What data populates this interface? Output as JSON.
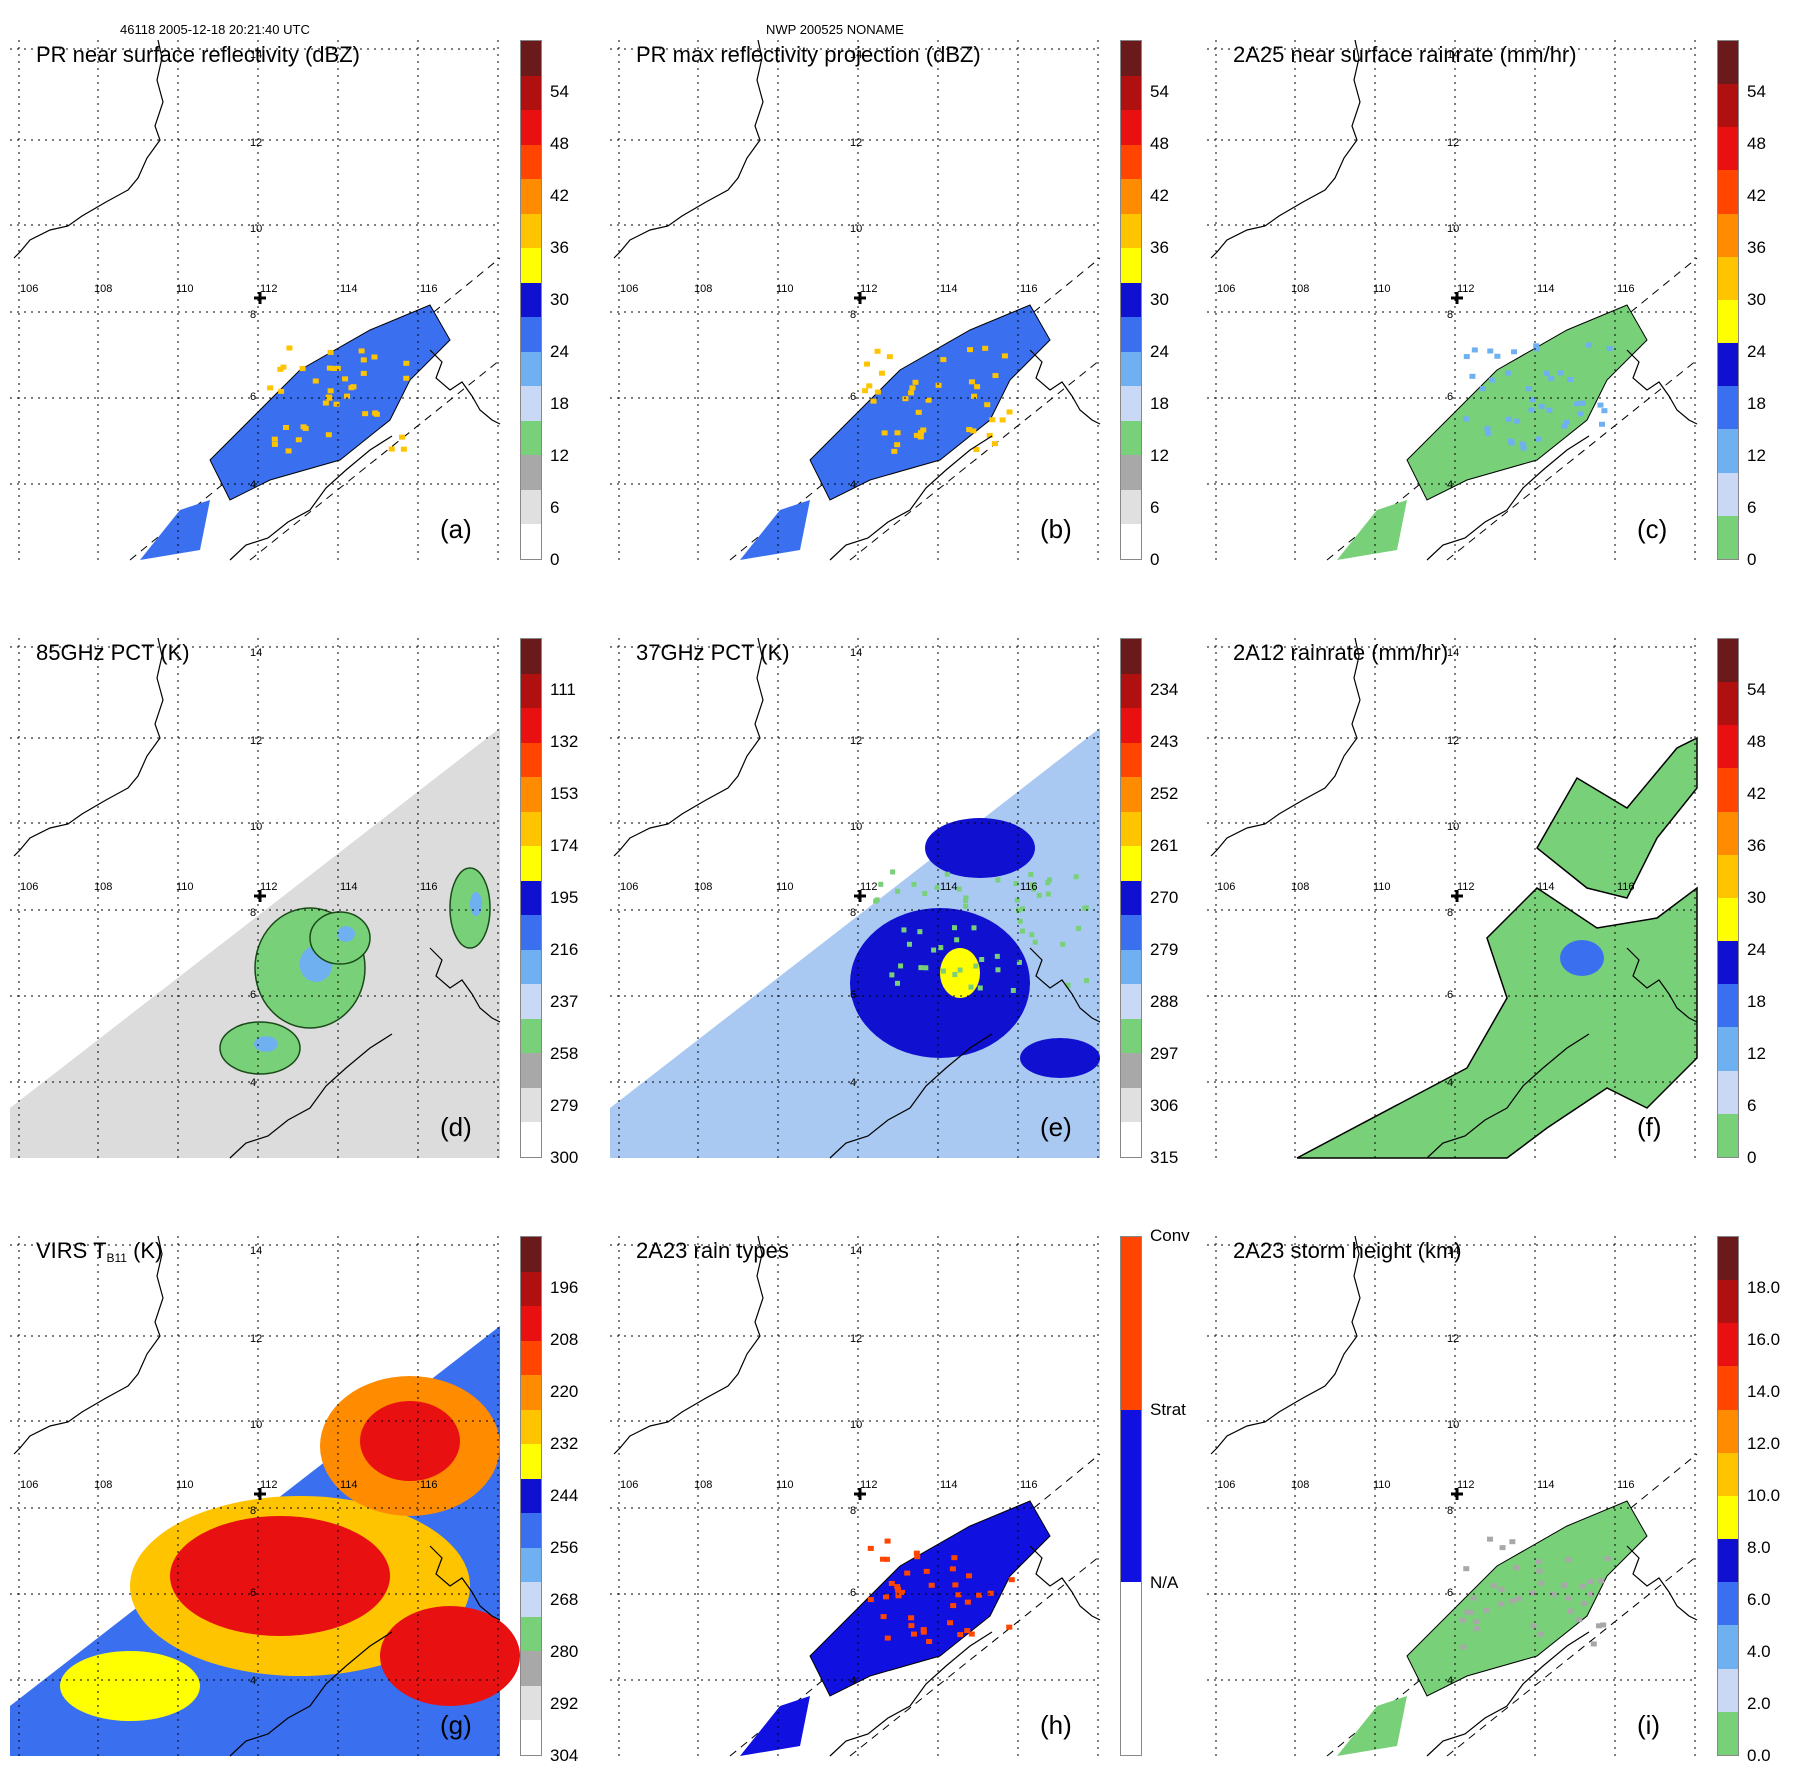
{
  "header": {
    "orbit_time": "46118 2005-12-18 20:21:40 UTC",
    "storm": "NWP 200525 NONAME"
  },
  "map": {
    "lon_labels": [
      "106",
      "108",
      "110",
      "112",
      "114",
      "116"
    ],
    "lat_labels": [
      "14",
      "12",
      "10",
      "8",
      "6",
      "4"
    ]
  },
  "colors": {
    "reflectivity": [
      "#ffffff",
      "#e0e0e0",
      "#a8a8a8",
      "#78d178",
      "#c9d8f5",
      "#6fb0f0",
      "#3a6ff0",
      "#1010d0",
      "#ffff00",
      "#ffc400",
      "#ff8c00",
      "#ff4500",
      "#e81010",
      "#b01010",
      "#6a1a1a"
    ],
    "rainrate": [
      "#78d178",
      "#c9d8f5",
      "#6fb0f0",
      "#3a6ff0",
      "#1010d0",
      "#ffff00",
      "#ffc400",
      "#ff8c00",
      "#ff4500",
      "#e81010",
      "#b01010",
      "#6a1a1a"
    ],
    "pct": [
      "#ffffff",
      "#e0e0e0",
      "#a8a8a8",
      "#78d178",
      "#c9d8f5",
      "#6fb0f0",
      "#3a6ff0",
      "#1010d0",
      "#ffff00",
      "#ffc400",
      "#ff8c00",
      "#ff4500",
      "#e81010",
      "#b01010",
      "#6a1a1a"
    ],
    "raintype": [
      "#ffffff",
      "#1010e0",
      "#ff4500"
    ]
  },
  "panels": [
    {
      "id": "a",
      "title": "PR near surface reflectivity (dBZ)",
      "label": "(a)",
      "colorbar": "reflectivity",
      "ticks": [
        "54",
        "48",
        "42",
        "36",
        "30",
        "24",
        "18",
        "12",
        "6",
        "0"
      ],
      "field": "pr"
    },
    {
      "id": "b",
      "title": "PR max reflectivity projection (dBZ)",
      "label": "(b)",
      "colorbar": "reflectivity",
      "ticks": [
        "54",
        "48",
        "42",
        "36",
        "30",
        "24",
        "18",
        "12",
        "6",
        "0"
      ],
      "field": "pr"
    },
    {
      "id": "c",
      "title": "2A25 near surface rainrate (mm/hr)",
      "label": "(c)",
      "colorbar": "rainrate",
      "ticks": [
        "54",
        "48",
        "42",
        "36",
        "30",
        "24",
        "18",
        "12",
        "6",
        "0"
      ],
      "field": "pr"
    },
    {
      "id": "d",
      "title": "85GHz PCT (K)",
      "label": "(d)",
      "colorbar": "pct",
      "ticks": [
        "111",
        "132",
        "153",
        "174",
        "195",
        "216",
        "237",
        "258",
        "279",
        "300"
      ],
      "field": "tmi"
    },
    {
      "id": "e",
      "title": "37GHz PCT (K)",
      "label": "(e)",
      "colorbar": "pct",
      "ticks": [
        "234",
        "243",
        "252",
        "261",
        "270",
        "279",
        "288",
        "297",
        "306",
        "315"
      ],
      "field": "tmi"
    },
    {
      "id": "f",
      "title": "2A12 rainrate (mm/hr)",
      "label": "(f)",
      "colorbar": "rainrate",
      "ticks": [
        "54",
        "48",
        "42",
        "36",
        "30",
        "24",
        "18",
        "12",
        "6",
        "0"
      ],
      "field": "tmi"
    },
    {
      "id": "g",
      "title": "VIRS T",
      "title_sub": "B11",
      "title_unit": " (K)",
      "label": "(g)",
      "colorbar": "pct",
      "ticks": [
        "196",
        "208",
        "220",
        "232",
        "244",
        "256",
        "268",
        "280",
        "292",
        "304"
      ],
      "field": "virs"
    },
    {
      "id": "h",
      "title": "2A23 rain types",
      "label": "(h)",
      "colorbar": "raintype",
      "ticks": [
        "Conv",
        "Strat",
        "N/A"
      ],
      "field": "pr"
    },
    {
      "id": "i",
      "title": "2A23 storm height (km)",
      "label": "(i)",
      "colorbar": "rainrate",
      "ticks": [
        "18.0",
        "16.0",
        "14.0",
        "12.0",
        "10.0",
        "8.0",
        "6.0",
        "4.0",
        "2.0",
        "0.0"
      ],
      "field": "pr"
    }
  ]
}
